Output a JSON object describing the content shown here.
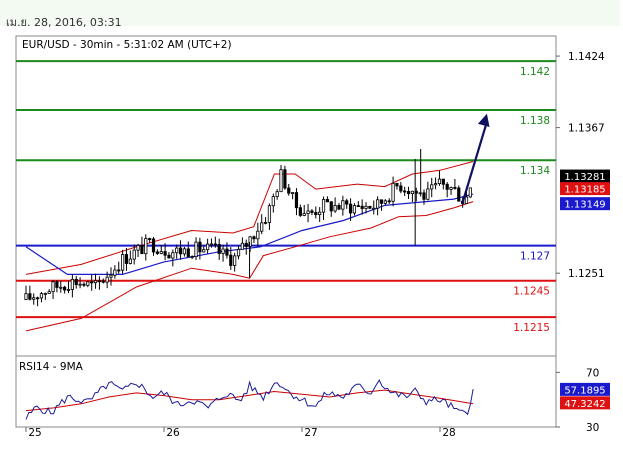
{
  "header": {
    "date_text": "เม.ย. 28, 2016, 03:31"
  },
  "colors": {
    "resistance": "#1a8a1a",
    "support": "#1a1acc",
    "support2": "#dd1111",
    "candle": "#000000",
    "bollinger": "#cc0000",
    "ma": "#1a1acc",
    "arrow": "#101060",
    "rsi": "#1a1a99",
    "rsi_ma": "#cc0000"
  },
  "chart_data": [
    {
      "type": "candlestick",
      "title": "EUR/USD - 30min - 5:31:02 AM (UTC+2)",
      "ylim": [
        1.1185,
        1.144
      ],
      "y_ticks": [
        "1.1424",
        "1.1367",
        "1.1251"
      ],
      "x_ticks": [
        "25",
        "26",
        "27",
        "28"
      ],
      "levels": [
        {
          "label": "1.142",
          "value": 1.142,
          "role": "resistance"
        },
        {
          "label": "1.138",
          "value": 1.1381,
          "role": "resistance"
        },
        {
          "label": "1.134",
          "value": 1.1341,
          "role": "resistance"
        },
        {
          "label": "1.127",
          "value": 1.1273,
          "role": "support"
        },
        {
          "label": "1.1245",
          "value": 1.1245,
          "role": "support2"
        },
        {
          "label": "1.1215",
          "value": 1.1216,
          "role": "support2"
        }
      ],
      "price_tags": [
        {
          "label": "1.13281",
          "value": 1.1328,
          "bg": "#000000",
          "fg": "#ffffff"
        },
        {
          "label": "1.13185",
          "value": 1.1318,
          "bg": "#dd1111",
          "fg": "#ffffff"
        },
        {
          "label": "1.13149",
          "value": 1.1306,
          "bg": "#1a1acc",
          "fg": "#ffffff"
        }
      ],
      "arrow": {
        "from": [
          3.16,
          1.1306
        ],
        "to": [
          3.34,
          1.1378
        ]
      },
      "keypoints": [
        [
          0.0,
          1.123
        ],
        [
          0.15,
          1.1238
        ],
        [
          0.35,
          1.1245
        ],
        [
          0.5,
          1.124
        ],
        [
          0.7,
          1.1262
        ],
        [
          0.9,
          1.1275
        ],
        [
          1.05,
          1.1268
        ],
        [
          1.2,
          1.127
        ],
        [
          1.35,
          1.127
        ],
        [
          1.5,
          1.1262
        ],
        [
          1.6,
          1.1275
        ],
        [
          1.75,
          1.1298
        ],
        [
          1.85,
          1.133
        ],
        [
          1.95,
          1.1305
        ],
        [
          2.05,
          1.1298
        ],
        [
          2.15,
          1.1305
        ],
        [
          2.35,
          1.1304
        ],
        [
          2.55,
          1.1305
        ],
        [
          2.7,
          1.1322
        ],
        [
          2.9,
          1.1312
        ],
        [
          3.0,
          1.1322
        ],
        [
          3.1,
          1.1318
        ],
        [
          3.18,
          1.1308
        ],
        [
          3.24,
          1.1328
        ]
      ],
      "bb_upper": [
        [
          0.0,
          1.125
        ],
        [
          0.4,
          1.1258
        ],
        [
          0.8,
          1.1272
        ],
        [
          1.2,
          1.1285
        ],
        [
          1.5,
          1.1283
        ],
        [
          1.65,
          1.1288
        ],
        [
          1.8,
          1.133
        ],
        [
          1.95,
          1.133
        ],
        [
          2.1,
          1.1318
        ],
        [
          2.4,
          1.1322
        ],
        [
          2.6,
          1.132
        ],
        [
          2.8,
          1.133
        ],
        [
          3.0,
          1.1333
        ],
        [
          3.24,
          1.134
        ]
      ],
      "bb_lower": [
        [
          0.0,
          1.1205
        ],
        [
          0.4,
          1.1215
        ],
        [
          0.8,
          1.124
        ],
        [
          1.2,
          1.1255
        ],
        [
          1.5,
          1.125
        ],
        [
          1.62,
          1.1247
        ],
        [
          1.72,
          1.1265
        ],
        [
          1.95,
          1.1272
        ],
        [
          2.2,
          1.128
        ],
        [
          2.5,
          1.1287
        ],
        [
          2.7,
          1.1296
        ],
        [
          2.9,
          1.1297
        ],
        [
          3.1,
          1.1303
        ],
        [
          3.24,
          1.1308
        ]
      ],
      "ma": [
        [
          0.0,
          1.1272
        ],
        [
          0.3,
          1.125
        ],
        [
          0.7,
          1.125
        ],
        [
          1.0,
          1.126
        ],
        [
          1.4,
          1.1268
        ],
        [
          1.7,
          1.1272
        ],
        [
          2.0,
          1.1285
        ],
        [
          2.3,
          1.1293
        ],
        [
          2.6,
          1.1305
        ],
        [
          2.9,
          1.1308
        ],
        [
          3.1,
          1.131
        ],
        [
          3.24,
          1.1314
        ]
      ],
      "spikes": [
        {
          "x": 2.82,
          "high": 1.1342,
          "low": 1.1273
        },
        {
          "x": 2.86,
          "high": 1.135,
          "low": 1.1312
        },
        {
          "x": 1.62,
          "high": 1.1276,
          "low": 1.1247
        }
      ]
    },
    {
      "type": "line",
      "title": "RSI14 - 9MA",
      "ylim": [
        30,
        82
      ],
      "y_ticks": [
        "70",
        "30"
      ],
      "tags": [
        {
          "label": "57.1895",
          "value": 57.19,
          "bg": "#1a1acc",
          "fg": "#ffffff"
        },
        {
          "label": "47.3242",
          "value": 47.32,
          "bg": "#dd1111",
          "fg": "#ffffff"
        }
      ],
      "rsi": [
        [
          0.0,
          36
        ],
        [
          0.08,
          45
        ],
        [
          0.18,
          40
        ],
        [
          0.3,
          52
        ],
        [
          0.45,
          48
        ],
        [
          0.6,
          62
        ],
        [
          0.7,
          56
        ],
        [
          0.8,
          63
        ],
        [
          0.92,
          52
        ],
        [
          1.0,
          55
        ],
        [
          1.1,
          46
        ],
        [
          1.2,
          50
        ],
        [
          1.32,
          44
        ],
        [
          1.45,
          55
        ],
        [
          1.55,
          49
        ],
        [
          1.62,
          60
        ],
        [
          1.72,
          52
        ],
        [
          1.82,
          64
        ],
        [
          1.9,
          56
        ],
        [
          2.0,
          50
        ],
        [
          2.1,
          45
        ],
        [
          2.18,
          55
        ],
        [
          2.3,
          52
        ],
        [
          2.4,
          60
        ],
        [
          2.5,
          55
        ],
        [
          2.55,
          65
        ],
        [
          2.65,
          55
        ],
        [
          2.75,
          52
        ],
        [
          2.82,
          56
        ],
        [
          2.9,
          49
        ],
        [
          3.0,
          50
        ],
        [
          3.08,
          45
        ],
        [
          3.14,
          40
        ],
        [
          3.2,
          42
        ],
        [
          3.24,
          57
        ]
      ],
      "rsi_ma": [
        [
          0.0,
          42
        ],
        [
          0.2,
          44
        ],
        [
          0.4,
          47
        ],
        [
          0.6,
          52
        ],
        [
          0.8,
          55
        ],
        [
          1.0,
          53
        ],
        [
          1.2,
          50
        ],
        [
          1.4,
          50
        ],
        [
          1.6,
          53
        ],
        [
          1.8,
          56
        ],
        [
          2.0,
          54
        ],
        [
          2.2,
          52
        ],
        [
          2.4,
          55
        ],
        [
          2.6,
          57
        ],
        [
          2.8,
          54
        ],
        [
          3.0,
          51
        ],
        [
          3.24,
          47
        ]
      ]
    }
  ]
}
